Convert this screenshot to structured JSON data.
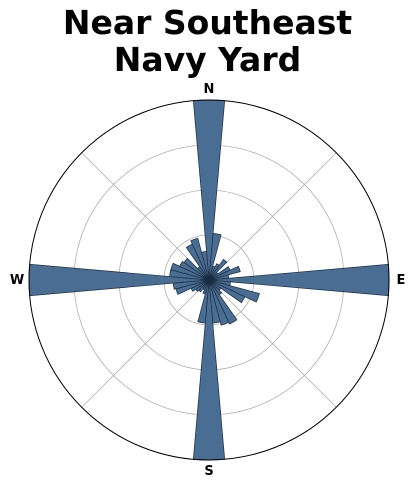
{
  "chart_data": {
    "type": "polar-bar",
    "title_lines": [
      "Near Southeast",
      "Navy Yard"
    ],
    "compass_labels": {
      "n": "N",
      "e": "E",
      "s": "S",
      "w": "W"
    },
    "bar_color": "#4a6d94",
    "edge_color": "#1c2d40",
    "r_max": 1.0,
    "r_gridlines": [
      0.25,
      0.5,
      0.75
    ],
    "bin_width_deg": 10,
    "bins": [
      {
        "angle": 0,
        "value": 1.0
      },
      {
        "angle": 10,
        "value": 0.26
      },
      {
        "angle": 20,
        "value": 0.08
      },
      {
        "angle": 30,
        "value": 0.1
      },
      {
        "angle": 40,
        "value": 0.14
      },
      {
        "angle": 50,
        "value": 0.06
      },
      {
        "angle": 60,
        "value": 0.13
      },
      {
        "angle": 70,
        "value": 0.18
      },
      {
        "angle": 80,
        "value": 0.11
      },
      {
        "angle": 90,
        "value": 1.0
      },
      {
        "angle": 100,
        "value": 0.12
      },
      {
        "angle": 110,
        "value": 0.29
      },
      {
        "angle": 120,
        "value": 0.22
      },
      {
        "angle": 130,
        "value": 0.08
      },
      {
        "angle": 140,
        "value": 0.1
      },
      {
        "angle": 150,
        "value": 0.27
      },
      {
        "angle": 160,
        "value": 0.26
      },
      {
        "angle": 170,
        "value": 0.24
      },
      {
        "angle": 180,
        "value": 1.0
      },
      {
        "angle": 190,
        "value": 0.24
      },
      {
        "angle": 200,
        "value": 0.08
      },
      {
        "angle": 210,
        "value": 0.06
      },
      {
        "angle": 220,
        "value": 0.08
      },
      {
        "angle": 230,
        "value": 0.09
      },
      {
        "angle": 240,
        "value": 0.11
      },
      {
        "angle": 250,
        "value": 0.19
      },
      {
        "angle": 260,
        "value": 0.2
      },
      {
        "angle": 270,
        "value": 1.0
      },
      {
        "angle": 280,
        "value": 0.22
      },
      {
        "angle": 290,
        "value": 0.22
      },
      {
        "angle": 300,
        "value": 0.18
      },
      {
        "angle": 310,
        "value": 0.17
      },
      {
        "angle": 320,
        "value": 0.09
      },
      {
        "angle": 330,
        "value": 0.22
      },
      {
        "angle": 340,
        "value": 0.24
      },
      {
        "angle": 350,
        "value": 0.16
      }
    ]
  }
}
